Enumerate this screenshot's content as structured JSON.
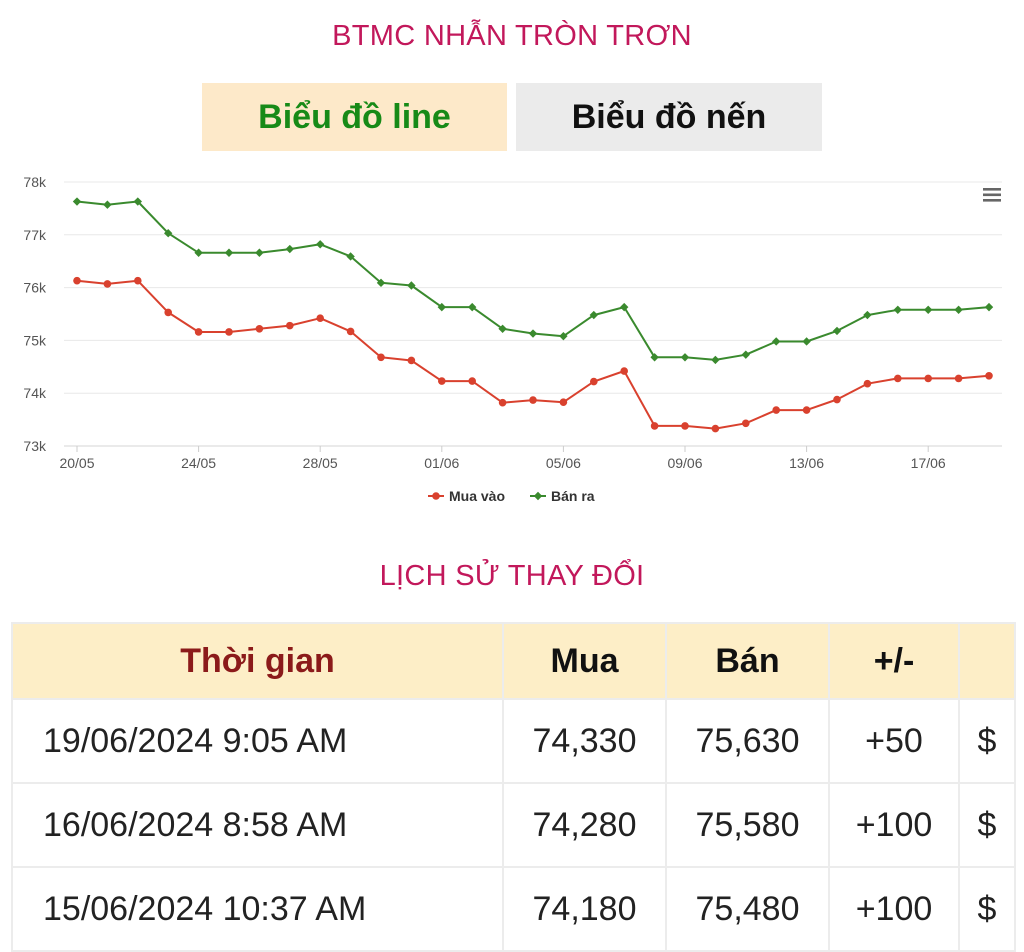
{
  "page": {
    "title": "BTMC NHẪN TRÒN TRƠN",
    "tabs": {
      "line_label": "Biểu đồ line",
      "candle_label": "Biểu đồ nến"
    },
    "history_title": "LỊCH SỬ THAY ĐỔI"
  },
  "colors": {
    "title": "#c2185b",
    "buy_series": "#d9412e",
    "sell_series": "#3a8a2e",
    "active_tab_bg": "#fde9c9",
    "active_tab_text": "#178a17",
    "header_bg": "#fdeec7",
    "positive_change": "#1e8c1e"
  },
  "chart_data": {
    "type": "line",
    "title": "",
    "xlabel": "",
    "ylabel": "",
    "ylim": [
      73000,
      78000
    ],
    "y_ticks": [
      "73k",
      "74k",
      "75k",
      "76k",
      "77k",
      "78k"
    ],
    "x_tick_labels": [
      "20/05",
      "24/05",
      "28/05",
      "01/06",
      "05/06",
      "09/06",
      "13/06",
      "17/06"
    ],
    "x_tick_indices": [
      0,
      4,
      8,
      12,
      16,
      20,
      24,
      28
    ],
    "grid": true,
    "legend": "bottom-center",
    "x": [
      "20/05",
      "21/05",
      "22/05",
      "23/05",
      "24/05",
      "25/05",
      "26/05",
      "27/05",
      "28/05",
      "29/05",
      "30/05",
      "31/05",
      "01/06",
      "02/06",
      "03/06",
      "04/06",
      "05/06",
      "06/06",
      "07/06",
      "08/06",
      "09/06",
      "10/06",
      "11/06",
      "12/06",
      "13/06",
      "14/06",
      "15/06",
      "16/06",
      "17/06",
      "18/06",
      "19/06"
    ],
    "series": [
      {
        "name": "Mua vào",
        "values": [
          76130,
          76070,
          76130,
          75530,
          75160,
          75160,
          75220,
          75280,
          75420,
          75170,
          74680,
          74620,
          74230,
          74230,
          73820,
          73870,
          73830,
          74220,
          74420,
          73380,
          73380,
          73330,
          73430,
          73680,
          73680,
          73880,
          74180,
          74280,
          74280,
          74280,
          74330
        ]
      },
      {
        "name": "Bán ra",
        "values": [
          77630,
          77570,
          77630,
          77030,
          76660,
          76660,
          76660,
          76730,
          76820,
          76590,
          76090,
          76040,
          75630,
          75630,
          75220,
          75130,
          75080,
          75480,
          75630,
          74680,
          74680,
          74630,
          74730,
          74980,
          74980,
          75180,
          75480,
          75580,
          75580,
          75580,
          75630
        ]
      }
    ]
  },
  "history": {
    "headers": {
      "time": "Thời gian",
      "buy": "Mua",
      "sell": "Bán",
      "change": "+/-"
    },
    "rows": [
      {
        "time": "19/06/2024 9:05 AM",
        "buy": "74,330",
        "sell": "75,630",
        "change": "+50",
        "currency": "$"
      },
      {
        "time": "16/06/2024 8:58 AM",
        "buy": "74,280",
        "sell": "75,580",
        "change": "+100",
        "currency": "$"
      },
      {
        "time": "15/06/2024 10:37 AM",
        "buy": "74,180",
        "sell": "75,480",
        "change": "+100",
        "currency": "$"
      }
    ]
  }
}
